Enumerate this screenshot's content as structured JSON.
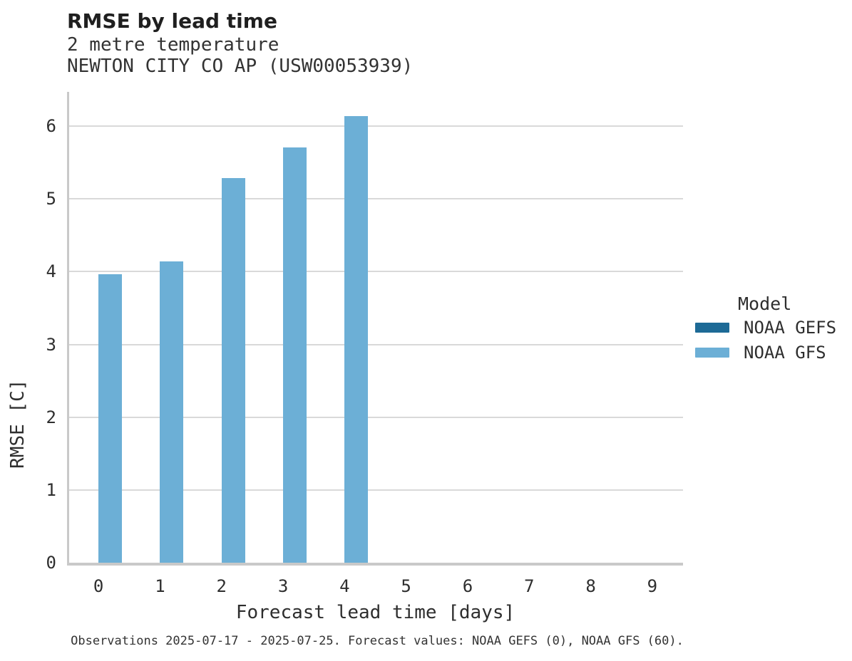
{
  "title": "RMSE by lead time",
  "subtitle_variable": "2 metre temperature",
  "subtitle_station": "NEWTON CITY CO AP (USW00053939)",
  "legend": {
    "title": "Model",
    "items": [
      {
        "label": "NOAA GEFS",
        "color": "#1d6a96"
      },
      {
        "label": "NOAA GFS",
        "color": "#6cafd6"
      }
    ]
  },
  "footer": "Observations 2025-07-17 - 2025-07-25. Forecast values: NOAA GEFS (0), NOAA GFS (60).",
  "colors": {
    "gefs": "#1d6a96",
    "gfs": "#6cafd6",
    "gridline": "#d9d9d9",
    "axis_line": "#c9c9c9",
    "text": "#2e2e2e"
  },
  "chart_data": {
    "type": "bar",
    "title": "RMSE by lead time",
    "subtitle": [
      "2 metre temperature",
      "NEWTON CITY CO AP (USW00053939)"
    ],
    "categories": [
      0,
      1,
      2,
      3,
      4,
      5,
      6,
      7,
      8,
      9
    ],
    "series": [
      {
        "name": "NOAA GEFS",
        "color": "#1d6a96",
        "values": [
          null,
          null,
          null,
          null,
          null,
          null,
          null,
          null,
          null,
          null
        ]
      },
      {
        "name": "NOAA GFS",
        "color": "#6cafd6",
        "values": [
          3.96,
          4.14,
          5.29,
          5.71,
          6.14,
          null,
          null,
          null,
          null,
          null
        ]
      }
    ],
    "xlabel": "Forecast lead time [days]",
    "ylabel": "RMSE [C]",
    "ylim": [
      0,
      6.47
    ],
    "yticks": [
      0,
      1,
      2,
      3,
      4,
      5,
      6
    ],
    "grid": true,
    "legend_title": "Model",
    "legend_position": "right",
    "caption": "Observations 2025-07-17 - 2025-07-25. Forecast values: NOAA GEFS (0), NOAA GFS (60)."
  }
}
